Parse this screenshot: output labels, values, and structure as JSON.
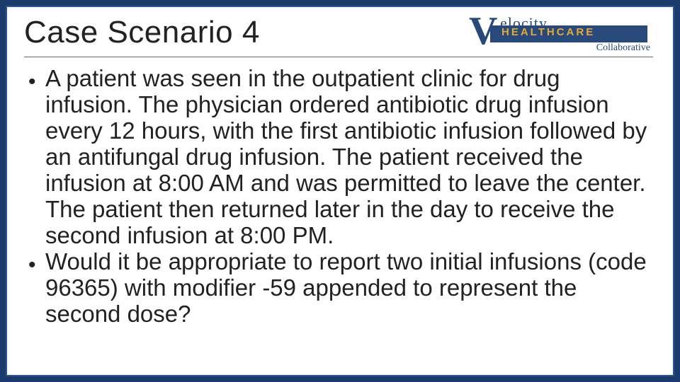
{
  "colors": {
    "page_bg": "#1a3a6b",
    "slide_bg": "#ffffff",
    "slide_border": "#2a5599",
    "text": "#222222",
    "divider": "#666666",
    "logo_primary": "#274a7a",
    "logo_accent": "#e8a838"
  },
  "title": "Case Scenario 4",
  "logo": {
    "v": "V",
    "word": "elocity",
    "line2": "HEALTHCARE",
    "line3": "Collaborative"
  },
  "bullets": [
    "A patient was seen in the outpatient clinic for drug infusion. The physician ordered antibiotic drug infusion every 12 hours, with the first antibiotic infusion followed by an antifungal drug infusion. The patient received the infusion at 8:00 AM and was permitted to leave the center. The patient then returned later in the day to receive the second infusion at 8:00 PM.",
    "Would it be appropriate to report two initial infusions (code 96365) with modifier -59 appended to represent the second dose?"
  ]
}
